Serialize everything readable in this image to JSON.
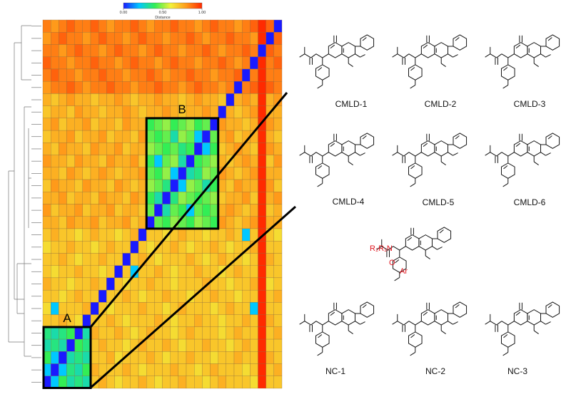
{
  "chart_data": {
    "type": "heatmap",
    "colorbar_label": "Distance",
    "clim": [
      0,
      1
    ],
    "cticks": [
      {
        "value": 0,
        "label": "0.00"
      },
      {
        "value": 0.5,
        "label": "0.50"
      },
      {
        "value": 1,
        "label": "1.00"
      }
    ],
    "colorscale": [
      "#1a1aff",
      "#00c8ff",
      "#33ee55",
      "#f2f23a",
      "#ff9a1a",
      "#ff2a00"
    ],
    "annotations": [
      "A",
      "B"
    ],
    "values": [
      [
        0.85,
        0.8,
        0.85,
        0.9,
        0.85,
        0.85,
        0.9,
        0.85,
        0.8,
        0.85,
        0.85,
        0.9,
        0.85,
        0.8,
        0.85,
        0.85,
        0.9,
        0.85,
        0.85,
        0.8,
        0.85,
        0.9,
        0.85,
        0.85,
        0.8,
        0.85,
        0.9,
        1,
        0.9,
        0
      ],
      [
        0.8,
        0.85,
        0.9,
        0.85,
        0.85,
        0.8,
        0.85,
        0.9,
        0.85,
        0.85,
        0.8,
        0.85,
        0.9,
        0.85,
        0.85,
        0.8,
        0.85,
        0.85,
        0.9,
        0.85,
        0.8,
        0.85,
        0.85,
        0.9,
        0.85,
        0.85,
        0.8,
        1,
        0,
        0.9
      ],
      [
        0.85,
        0.85,
        0.8,
        0.85,
        0.9,
        0.85,
        0.85,
        0.8,
        0.85,
        0.9,
        0.85,
        0.85,
        0.8,
        0.85,
        0.9,
        0.85,
        0.85,
        0.8,
        0.85,
        0.85,
        0.9,
        0.85,
        0.8,
        0.85,
        0.85,
        0.9,
        0.85,
        0,
        0.9,
        0.85
      ],
      [
        0.9,
        0.85,
        0.85,
        0.8,
        0.85,
        0.85,
        0.9,
        0.85,
        0.85,
        0.8,
        0.85,
        0.9,
        0.85,
        0.85,
        0.8,
        0.85,
        0.9,
        0.85,
        0.85,
        0.8,
        0.85,
        0.85,
        0.9,
        0.85,
        0.8,
        0.85,
        0,
        1,
        0.85,
        0.9
      ],
      [
        0.85,
        0.9,
        0.85,
        0.85,
        0.8,
        0.85,
        0.85,
        0.9,
        0.85,
        0.85,
        0.8,
        0.85,
        0.85,
        0.9,
        0.85,
        0.8,
        0.85,
        0.85,
        0.9,
        0.85,
        0.85,
        0.8,
        0.85,
        0.85,
        0.9,
        0,
        0.85,
        1,
        0.85,
        0.85
      ],
      [
        0.8,
        0.85,
        0.85,
        0.9,
        0.85,
        0.8,
        0.85,
        0.85,
        0.9,
        0.85,
        0.85,
        0.8,
        0.85,
        0.85,
        0.9,
        0.85,
        0.85,
        0.8,
        0.85,
        0.9,
        0.85,
        0.85,
        0.8,
        0.85,
        0,
        0.85,
        0.9,
        1,
        0.9,
        0.85
      ],
      [
        0.75,
        0.7,
        0.75,
        0.8,
        0.75,
        0.75,
        0.7,
        0.75,
        0.75,
        0.8,
        0.75,
        0.7,
        0.75,
        0.75,
        0.8,
        0.75,
        0.75,
        0.7,
        0.75,
        0.8,
        0.75,
        0.75,
        0.7,
        0,
        0.75,
        0.8,
        0.75,
        1,
        0.75,
        0.8
      ],
      [
        0.7,
        0.75,
        0.75,
        0.7,
        0.8,
        0.75,
        0.75,
        0.7,
        0.75,
        0.75,
        0.8,
        0.75,
        0.7,
        0.75,
        0.75,
        0.8,
        0.75,
        0.7,
        0.75,
        0.75,
        0.8,
        0.75,
        0,
        0.75,
        0.7,
        0.75,
        0.8,
        1,
        0.75,
        0.75
      ],
      [
        0.75,
        0.8,
        0.7,
        0.75,
        0.75,
        0.8,
        0.7,
        0.75,
        0.75,
        0.7,
        0.8,
        0.75,
        0.75,
        0.4,
        0.45,
        0.5,
        0.4,
        0.45,
        0.5,
        0.4,
        0.45,
        0,
        0.8,
        0.75,
        0.75,
        0.7,
        0.75,
        1,
        0.8,
        0.75
      ],
      [
        0.7,
        0.75,
        0.75,
        0.8,
        0.7,
        0.75,
        0.75,
        0.8,
        0.7,
        0.75,
        0.75,
        0.7,
        0.8,
        0.45,
        0.4,
        0.45,
        0.3,
        0.5,
        0.45,
        0.2,
        0,
        0.45,
        0.75,
        0.8,
        0.7,
        0.75,
        0.75,
        1,
        0.75,
        0.7
      ],
      [
        0.75,
        0.7,
        0.8,
        0.75,
        0.75,
        0.7,
        0.8,
        0.75,
        0.75,
        0.8,
        0.7,
        0.75,
        0.75,
        0.5,
        0.45,
        0.4,
        0.45,
        0.35,
        0.4,
        0,
        0.2,
        0.4,
        0.7,
        0.75,
        0.8,
        0.75,
        0.7,
        1,
        0.8,
        0.75
      ],
      [
        0.8,
        0.75,
        0.75,
        0.7,
        0.8,
        0.75,
        0.75,
        0.7,
        0.8,
        0.75,
        0.75,
        0.8,
        0.7,
        0.4,
        0.2,
        0.45,
        0.5,
        0.3,
        0,
        0.4,
        0.45,
        0.5,
        0.75,
        0.7,
        0.75,
        0.8,
        0.75,
        1,
        0.7,
        0.8
      ],
      [
        0.75,
        0.75,
        0.7,
        0.8,
        0.75,
        0.7,
        0.75,
        0.8,
        0.75,
        0.7,
        0.75,
        0.75,
        0.8,
        0.45,
        0.4,
        0.5,
        0.2,
        0,
        0.3,
        0.35,
        0.5,
        0.45,
        0.8,
        0.75,
        0.7,
        0.75,
        0.8,
        1,
        0.75,
        0.75
      ],
      [
        0.7,
        0.8,
        0.75,
        0.75,
        0.7,
        0.8,
        0.75,
        0.75,
        0.7,
        0.8,
        0.75,
        0.7,
        0.75,
        0.5,
        0.45,
        0.35,
        0,
        0.2,
        0.5,
        0.45,
        0.3,
        0.4,
        0.75,
        0.7,
        0.8,
        0.75,
        0.75,
        1,
        0.8,
        0.7
      ],
      [
        0.75,
        0.75,
        0.8,
        0.7,
        0.75,
        0.75,
        0.7,
        0.8,
        0.75,
        0.75,
        0.7,
        0.8,
        0.75,
        0.4,
        0.3,
        0,
        0.35,
        0.5,
        0.45,
        0.4,
        0.45,
        0.5,
        0.7,
        0.75,
        0.75,
        0.8,
        0.7,
        1,
        0.75,
        0.8
      ],
      [
        0.8,
        0.7,
        0.75,
        0.75,
        0.8,
        0.7,
        0.75,
        0.75,
        0.8,
        0.7,
        0.75,
        0.75,
        0.7,
        0.45,
        0,
        0.3,
        0.45,
        0.4,
        0.2,
        0.45,
        0.4,
        0.45,
        0.75,
        0.8,
        0.75,
        0.7,
        0.75,
        1,
        0.7,
        0.75
      ],
      [
        0.75,
        0.75,
        0.7,
        0.8,
        0.75,
        0.75,
        0.8,
        0.7,
        0.75,
        0.75,
        0.8,
        0.7,
        0.75,
        0,
        0.45,
        0.4,
        0.5,
        0.45,
        0.4,
        0.5,
        0.45,
        0.4,
        0.8,
        0.75,
        0.7,
        0.75,
        0.8,
        1,
        0.75,
        0.75
      ],
      [
        0.7,
        0.75,
        0.7,
        0.7,
        0.65,
        0.7,
        0.75,
        0.7,
        0.7,
        0.65,
        0.7,
        0.75,
        0,
        0.7,
        0.7,
        0.65,
        0.7,
        0.75,
        0.7,
        0.7,
        0.65,
        0.7,
        0.7,
        0.75,
        0.7,
        0.2,
        0.7,
        1,
        0.7,
        0.65
      ],
      [
        0.65,
        0.7,
        0.7,
        0.75,
        0.7,
        0.7,
        0.65,
        0.7,
        0.75,
        0.7,
        0.7,
        0,
        0.7,
        0.65,
        0.7,
        0.7,
        0.75,
        0.7,
        0.65,
        0.7,
        0.7,
        0.75,
        0.7,
        0.65,
        0.7,
        0.7,
        0.75,
        1,
        0.7,
        0.7
      ],
      [
        0.7,
        0.7,
        0.75,
        0.7,
        0.65,
        0.7,
        0.7,
        0.75,
        0.7,
        0.7,
        0,
        0.7,
        0.75,
        0.7,
        0.65,
        0.7,
        0.7,
        0.7,
        0.75,
        0.7,
        0.65,
        0.7,
        0.75,
        0.7,
        0.7,
        0.65,
        0.7,
        1,
        0.75,
        0.7
      ],
      [
        0.7,
        0.65,
        0.7,
        0.7,
        0.75,
        0.7,
        0.7,
        0.65,
        0.7,
        0,
        0.7,
        0.2,
        0.7,
        0.7,
        0.75,
        0.7,
        0.65,
        0.7,
        0.7,
        0.75,
        0.7,
        0.7,
        0.65,
        0.7,
        0.75,
        0.7,
        0.7,
        1,
        0.7,
        0.7
      ],
      [
        0.75,
        0.7,
        0.7,
        0.65,
        0.7,
        0.7,
        0.75,
        0.7,
        0,
        0.7,
        0.65,
        0.7,
        0.7,
        0.75,
        0.7,
        0.7,
        0.65,
        0.7,
        0.7,
        0.7,
        0.75,
        0.7,
        0.7,
        0.65,
        0.7,
        0.7,
        0.75,
        1,
        0.65,
        0.7
      ],
      [
        0.7,
        0.7,
        0.65,
        0.7,
        0.75,
        0.7,
        0.7,
        0,
        0.7,
        0.7,
        0.75,
        0.7,
        0.65,
        0.7,
        0.7,
        0.75,
        0.7,
        0.7,
        0.65,
        0.7,
        0.7,
        0.75,
        0.7,
        0.7,
        0.65,
        0.7,
        0.7,
        1,
        0.7,
        0.75
      ],
      [
        0.65,
        0.2,
        0.7,
        0.7,
        0.7,
        0.75,
        0,
        0.7,
        0.65,
        0.7,
        0.7,
        0.7,
        0.75,
        0.7,
        0.7,
        0.65,
        0.7,
        0.75,
        0.7,
        0.7,
        0.7,
        0.65,
        0.7,
        0.75,
        0.7,
        0.7,
        0.2,
        1,
        0.7,
        0.7
      ],
      [
        0.7,
        0.7,
        0.75,
        0.7,
        0.65,
        0,
        0.7,
        0.7,
        0.75,
        0.7,
        0.65,
        0.7,
        0.7,
        0.7,
        0.75,
        0.7,
        0.65,
        0.7,
        0.7,
        0.75,
        0.7,
        0.7,
        0.65,
        0.7,
        0.7,
        0.75,
        0.7,
        1,
        0.75,
        0.7
      ],
      [
        0.35,
        0.3,
        0.35,
        0.4,
        0,
        0.3,
        0.75,
        0.7,
        0.7,
        0.75,
        0.7,
        0.65,
        0.7,
        0.75,
        0.7,
        0.7,
        0.65,
        0.7,
        0.75,
        0.7,
        0.7,
        0.7,
        0.65,
        0.7,
        0.75,
        0.7,
        0.7,
        1,
        0.7,
        0.75
      ],
      [
        0.3,
        0.35,
        0.3,
        0,
        0.4,
        0.35,
        0.7,
        0.75,
        0.7,
        0.7,
        0.65,
        0.7,
        0.75,
        0.7,
        0.7,
        0.75,
        0.7,
        0.65,
        0.7,
        0.7,
        0.75,
        0.7,
        0.7,
        0.65,
        0.7,
        0.75,
        0.7,
        1,
        0.7,
        0.7
      ],
      [
        0.4,
        0.2,
        0,
        0.3,
        0.35,
        0.3,
        0.7,
        0.7,
        0.75,
        0.65,
        0.7,
        0.7,
        0.7,
        0.75,
        0.7,
        0.65,
        0.7,
        0.7,
        0.75,
        0.7,
        0.7,
        0.65,
        0.7,
        0.7,
        0.75,
        0.7,
        0.7,
        1,
        0.75,
        0.7
      ],
      [
        0.2,
        0,
        0.2,
        0.35,
        0.3,
        0.4,
        0.75,
        0.7,
        0.7,
        0.7,
        0.75,
        0.7,
        0.65,
        0.7,
        0.7,
        0.7,
        0.75,
        0.7,
        0.7,
        0.65,
        0.7,
        0.75,
        0.7,
        0.7,
        0.7,
        0.65,
        0.7,
        1,
        0.7,
        0.75
      ],
      [
        0,
        0.2,
        0.4,
        0.3,
        0.35,
        0.3,
        0.7,
        0.75,
        0.7,
        0.65,
        0.7,
        0.7,
        0.75,
        0.7,
        0.65,
        0.7,
        0.7,
        0.75,
        0.7,
        0.7,
        0.65,
        0.7,
        0.75,
        0.7,
        0.7,
        0.7,
        0.65,
        1,
        0.7,
        0.7
      ]
    ]
  },
  "compounds": {
    "labels": [
      "CMLD-1",
      "CMLD-2",
      "CMLD-3",
      "CMLD-4",
      "CMLD-5",
      "CMLD-6",
      "NC-1",
      "NC-2",
      "NC-3"
    ]
  },
  "generic_structure": {
    "amine": "R₂R₁N",
    "carbonyl": "O",
    "aryl": "Ar"
  }
}
